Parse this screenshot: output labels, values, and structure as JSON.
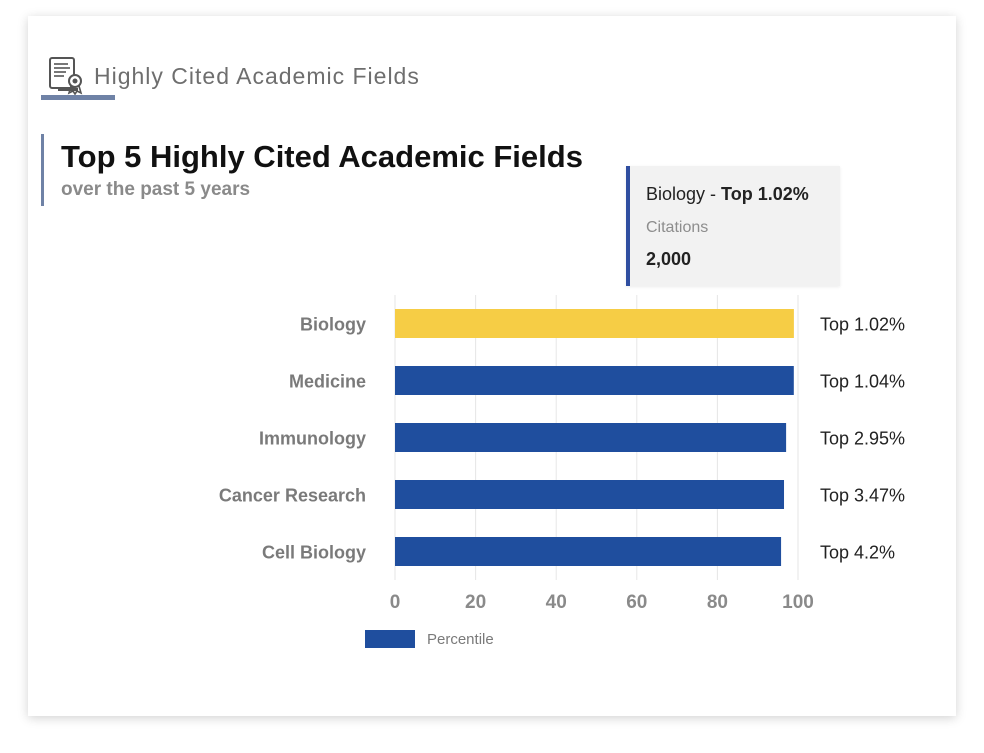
{
  "header": {
    "section_title": "Highly Cited Academic Fields",
    "icon": "certificate-document-icon"
  },
  "tooltip": {
    "category": "Biology",
    "separator": " - ",
    "value_label": "Top 1.02%",
    "metric_label": "Citations",
    "metric_value": "2,000"
  },
  "legend": {
    "label": "Percentile"
  },
  "colors": {
    "bar": "#1f4e9e",
    "highlight": "#f6cd45",
    "accent": "#6f82a6"
  },
  "chart_data": {
    "type": "bar",
    "orientation": "horizontal",
    "title": "Top 5 Highly Cited Academic Fields",
    "subtitle": "over the past 5 years",
    "categories": [
      "Biology",
      "Medicine",
      "Immunology",
      "Cancer Research",
      "Cell Biology"
    ],
    "series": [
      {
        "name": "Percentile",
        "values": [
          98.98,
          98.96,
          97.05,
          96.53,
          95.8
        ]
      }
    ],
    "data_labels": [
      "Top 1.02%",
      "Top 1.04%",
      "Top 2.95%",
      "Top 3.47%",
      "Top 4.2%"
    ],
    "highlighted_category": "Biology",
    "xlim": [
      0,
      100
    ],
    "xticks": [
      0,
      20,
      40,
      60,
      80,
      100
    ],
    "grid": true,
    "legend_position": "bottom-left"
  }
}
